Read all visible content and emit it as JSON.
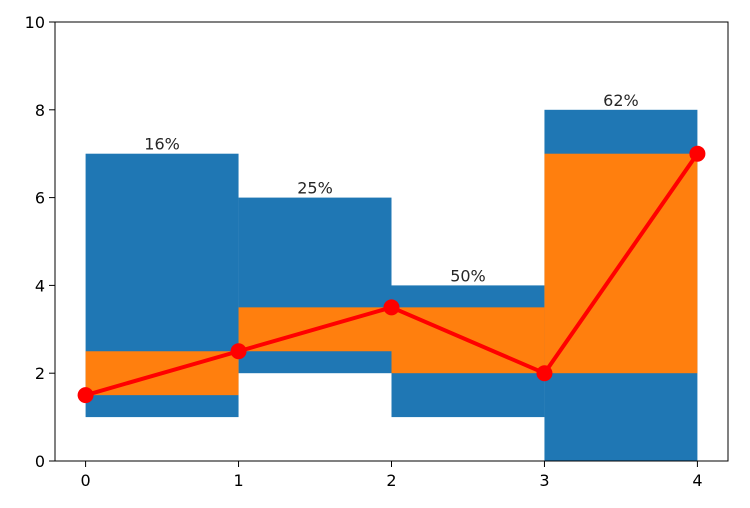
{
  "chart_data": {
    "type": "bar",
    "title": "",
    "xlabel": "",
    "ylabel": "",
    "xlim": [
      -0.2,
      4.2
    ],
    "ylim": [
      0,
      10
    ],
    "x_ticks": [
      "0",
      "1",
      "2",
      "3",
      "4"
    ],
    "y_ticks": [
      "0",
      "2",
      "4",
      "6",
      "8",
      "10"
    ],
    "grid": false,
    "colors": {
      "blue_bars": "#1f77b4",
      "orange_bars": "#ff7f0e",
      "line": "#ff0000"
    },
    "blue_bars": [
      {
        "x_start": 0,
        "x_end": 1,
        "bottom": 1,
        "top": 7
      },
      {
        "x_start": 1,
        "x_end": 2,
        "bottom": 2,
        "top": 6
      },
      {
        "x_start": 2,
        "x_end": 3,
        "bottom": 1,
        "top": 4
      },
      {
        "x_start": 3,
        "x_end": 4,
        "bottom": 0,
        "top": 8
      }
    ],
    "orange_bars": [
      {
        "x_start": 0,
        "x_end": 1,
        "bottom": 1.5,
        "top": 2.5
      },
      {
        "x_start": 1,
        "x_end": 2,
        "bottom": 2.5,
        "top": 3.5
      },
      {
        "x_start": 2,
        "x_end": 3,
        "bottom": 2,
        "top": 3.5
      },
      {
        "x_start": 3,
        "x_end": 4,
        "bottom": 2,
        "top": 7
      }
    ],
    "bar_labels": [
      "16%",
      "25%",
      "50%",
      "62%"
    ],
    "line": {
      "x": [
        0,
        1,
        2,
        3,
        4
      ],
      "y": [
        1.5,
        2.5,
        3.5,
        2,
        7
      ]
    }
  }
}
